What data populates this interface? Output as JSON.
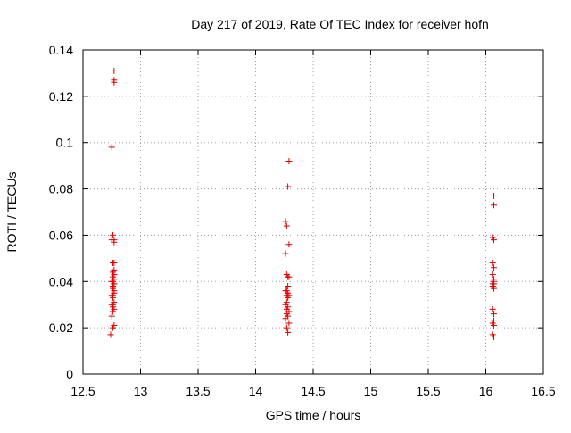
{
  "chart_data": {
    "type": "scatter",
    "title": "Day 217 of 2019, Rate Of TEC Index for receiver hofn",
    "xlabel": "GPS time / hours",
    "ylabel": "ROTI / TECUs",
    "xlim": [
      12.5,
      16.5
    ],
    "ylim": [
      0,
      0.14
    ],
    "xticks": [
      12.5,
      13,
      13.5,
      14,
      14.5,
      15,
      15.5,
      16,
      16.5
    ],
    "yticks": [
      0,
      0.02,
      0.04,
      0.06,
      0.08,
      0.1,
      0.12,
      0.14
    ],
    "xtick_labels": [
      "12.5",
      "13",
      "13.5",
      "14",
      "14.5",
      "15",
      "15.5",
      "16",
      "16.5"
    ],
    "ytick_labels": [
      "0",
      "0.02",
      "0.04",
      "0.06",
      "0.08",
      "0.1",
      "0.12",
      "0.14"
    ],
    "grid": true,
    "marker": "+",
    "marker_color": "#e00000",
    "series": [
      {
        "name": "ROTI",
        "x": [
          12.77,
          12.77,
          12.77,
          12.75,
          12.76,
          12.75,
          12.77,
          12.77,
          12.77,
          12.76,
          12.77,
          12.76,
          12.77,
          12.76,
          12.77,
          12.75,
          12.76,
          12.77,
          12.77,
          12.76,
          12.76,
          12.77,
          12.77,
          12.76,
          12.75,
          12.76,
          12.77,
          12.75,
          12.76,
          12.76,
          12.77,
          12.76,
          12.75,
          12.77,
          12.76,
          12.74,
          14.29,
          14.28,
          14.26,
          14.27,
          14.29,
          14.26,
          14.27,
          14.28,
          14.29,
          14.28,
          14.27,
          14.26,
          14.28,
          14.27,
          14.29,
          14.28,
          14.27,
          14.26,
          14.28,
          14.27,
          14.29,
          14.27,
          14.28,
          14.26,
          14.29,
          14.27,
          14.28,
          16.07,
          16.07,
          16.06,
          16.07,
          16.06,
          16.07,
          16.06,
          16.07,
          16.07,
          16.06,
          16.07,
          16.06,
          16.07,
          16.06,
          16.07,
          16.07,
          16.06,
          16.07,
          16.06,
          16.07
        ],
        "y": [
          0.131,
          0.127,
          0.126,
          0.098,
          0.06,
          0.058,
          0.058,
          0.057,
          0.048,
          0.048,
          0.045,
          0.044,
          0.043,
          0.042,
          0.041,
          0.04,
          0.04,
          0.039,
          0.039,
          0.038,
          0.037,
          0.036,
          0.035,
          0.034,
          0.034,
          0.033,
          0.031,
          0.03,
          0.03,
          0.029,
          0.028,
          0.027,
          0.025,
          0.021,
          0.02,
          0.017,
          0.092,
          0.081,
          0.066,
          0.064,
          0.056,
          0.052,
          0.043,
          0.042,
          0.042,
          0.038,
          0.036,
          0.036,
          0.035,
          0.034,
          0.034,
          0.033,
          0.031,
          0.03,
          0.029,
          0.028,
          0.027,
          0.026,
          0.025,
          0.024,
          0.022,
          0.02,
          0.018,
          0.077,
          0.073,
          0.059,
          0.058,
          0.048,
          0.046,
          0.043,
          0.041,
          0.04,
          0.039,
          0.039,
          0.038,
          0.037,
          0.028,
          0.026,
          0.023,
          0.022,
          0.021,
          0.017,
          0.016
        ]
      }
    ]
  }
}
